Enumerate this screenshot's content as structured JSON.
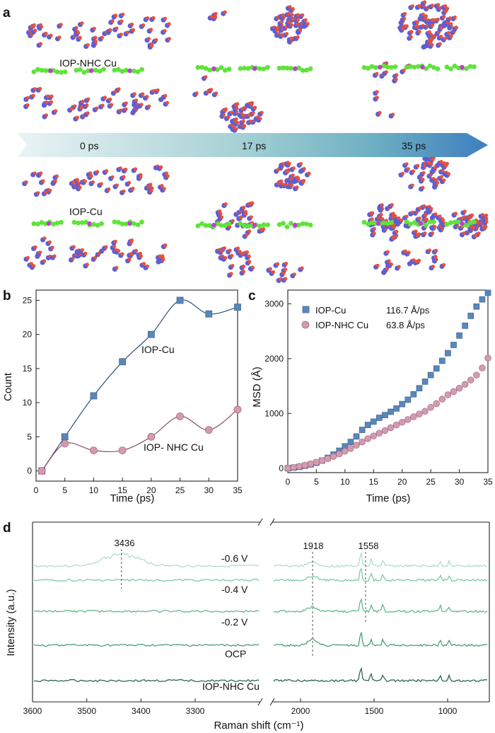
{
  "panel_labels": {
    "a": "a",
    "b": "b",
    "c": "c",
    "d": "d"
  },
  "panel_a": {
    "arrow_times": [
      "0 ps",
      "17 ps",
      "35 ps"
    ],
    "system_labels": [
      "IOP-NHC Cu",
      "IOP-Cu"
    ]
  },
  "colors": {
    "iop_cu": "#5b86b8",
    "iop_nhc": "#d49bb0",
    "molecule_blue": "#5a5fd6",
    "molecule_red": "#e8503c",
    "ligand_green": "#5fe33a",
    "metal_magenta": "#c23bd6",
    "raman_lines": [
      "#a9dcc0",
      "#74c79a",
      "#56b382",
      "#3c9a6a",
      "#1f5e3f"
    ]
  },
  "chart_data": [
    {
      "type": "line",
      "panel": "b",
      "xlabel": "Time (ps)",
      "ylabel": "Count",
      "xlim": [
        0,
        35
      ],
      "ylim": [
        -1.5,
        26.5
      ],
      "x_ticks": [
        "0",
        "5",
        "10",
        "15",
        "20",
        "25",
        "30",
        "35"
      ],
      "y_ticks": [
        "0",
        "5",
        "10",
        "15",
        "20",
        "25"
      ],
      "x": [
        1,
        5,
        10,
        15,
        20,
        25,
        30,
        35
      ],
      "series": [
        {
          "name": "IOP-Cu",
          "marker": "square",
          "values": [
            0,
            5,
            11,
            16,
            20,
            25,
            23,
            24
          ]
        },
        {
          "name": "IOP- NHC Cu",
          "marker": "circle",
          "values": [
            0,
            4,
            3,
            3,
            5,
            8,
            6,
            9
          ]
        }
      ]
    },
    {
      "type": "scatter",
      "panel": "c",
      "xlabel": "Time (ps)",
      "ylabel": "MSD (Å)",
      "xlim": [
        0,
        35
      ],
      "ylim": [
        -80,
        3250
      ],
      "x_ticks": [
        "0",
        "5",
        "10",
        "15",
        "20",
        "25",
        "30",
        "35"
      ],
      "y_ticks": [
        "0",
        "1000",
        "2000",
        "3000"
      ],
      "legend": "top-left",
      "series": [
        {
          "name": "IOP-Cu",
          "marker": "square",
          "slope": "116.7 Å/ps",
          "x": [
            0,
            1,
            2,
            3,
            4,
            5,
            6,
            7,
            8,
            9,
            10,
            11,
            12,
            13,
            14,
            15,
            16,
            17,
            18,
            19,
            20,
            21,
            22,
            23,
            24,
            25,
            26,
            27,
            28,
            29,
            30,
            31,
            32,
            33,
            34,
            35
          ],
          "values": [
            0,
            10,
            25,
            45,
            70,
            100,
            140,
            190,
            250,
            320,
            400,
            480,
            580,
            700,
            790,
            850,
            920,
            970,
            1030,
            1090,
            1170,
            1250,
            1350,
            1460,
            1580,
            1700,
            1820,
            1960,
            2100,
            2250,
            2420,
            2600,
            2780,
            2950,
            3080,
            3200
          ]
        },
        {
          "name": "IOP-NHC Cu",
          "marker": "circle",
          "slope": "63.8 Å/ps",
          "x": [
            0,
            1,
            2,
            3,
            4,
            5,
            6,
            7,
            8,
            9,
            10,
            11,
            12,
            13,
            14,
            15,
            16,
            17,
            18,
            19,
            20,
            21,
            22,
            23,
            24,
            25,
            26,
            27,
            28,
            29,
            30,
            31,
            32,
            33,
            34,
            35
          ],
          "values": [
            0,
            15,
            35,
            55,
            80,
            110,
            140,
            175,
            215,
            260,
            310,
            360,
            420,
            480,
            540,
            590,
            640,
            690,
            740,
            790,
            840,
            890,
            940,
            990,
            1040,
            1110,
            1180,
            1260,
            1340,
            1400,
            1460,
            1530,
            1610,
            1700,
            1830,
            2010
          ]
        }
      ]
    },
    {
      "type": "line",
      "panel": "d",
      "xlabel": "Raman shift (cm⁻¹)",
      "ylabel": "Intensity (a.u.)",
      "x_ticks_left": [
        "3600",
        "3500",
        "3400",
        "3300"
      ],
      "x_ticks_right": [
        "2000",
        "1500",
        "1000"
      ],
      "broken_axis": [
        3150,
        2200
      ],
      "peak_labels": [
        "3436",
        "1918",
        "1558"
      ],
      "series": [
        {
          "name": "-0.6 V"
        },
        {
          "name": "-0.4 V"
        },
        {
          "name": "-0.2 V"
        },
        {
          "name": "OCP"
        },
        {
          "name": "IOP-NHC Cu"
        }
      ]
    }
  ]
}
